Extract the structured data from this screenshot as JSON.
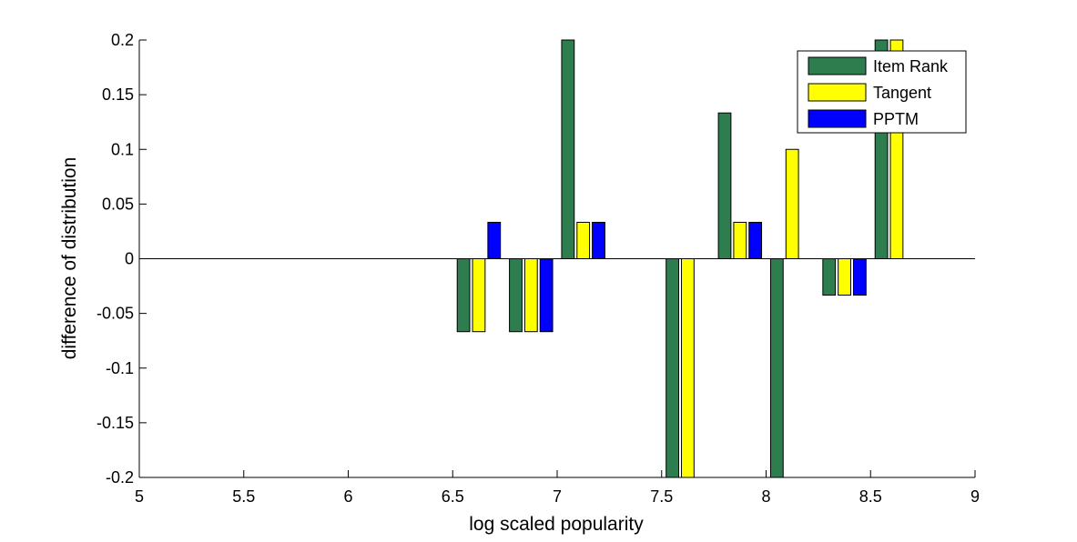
{
  "chart_data": {
    "type": "bar",
    "xlabel": "log scaled popularity",
    "ylabel": "difference of distribution",
    "xlim": [
      5,
      9
    ],
    "ylim": [
      -0.2,
      0.2
    ],
    "xticks": [
      "5",
      "5.5",
      "6",
      "6.5",
      "7",
      "7.5",
      "8",
      "8.5",
      "9"
    ],
    "yticks": [
      "-0.2",
      "-0.15",
      "-0.1",
      "-0.05",
      "0",
      "0.05",
      "0.1",
      "0.15",
      "0.2"
    ],
    "grid": false,
    "legend_position": "top-right",
    "bin_centers": [
      6.625,
      6.875,
      7.125,
      7.375,
      7.625,
      7.875,
      8.125,
      8.375,
      8.625
    ],
    "series": [
      {
        "name": "Item Rank",
        "color": "#2e7d4f",
        "values": [
          -0.0667,
          -0.0667,
          0.2,
          0,
          -0.2,
          0.1333,
          -0.2,
          -0.0333,
          0.2
        ]
      },
      {
        "name": "Tangent",
        "color": "#ffff00",
        "values": [
          -0.0667,
          -0.0667,
          0.0333,
          0,
          -0.2,
          0.0333,
          0.1,
          -0.0333,
          0.2
        ]
      },
      {
        "name": "PPTM",
        "color": "#0000ff",
        "values": [
          0.0333,
          -0.0667,
          0.0333,
          0,
          0,
          0.0333,
          0,
          -0.0333,
          0
        ]
      }
    ]
  }
}
